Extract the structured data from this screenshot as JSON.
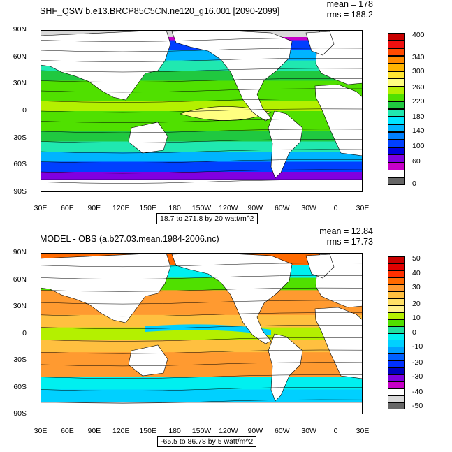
{
  "panels": [
    {
      "title": "SHF_QSW b.e13.BRCP85C5CN.ne120_g16.001 [2090-2099]",
      "mean": "mean = 178",
      "rms": "rms = 188.2",
      "caption": "18.7 to 271.8 by 20 watt/m^2",
      "legend": {
        "labels": [
          "400",
          "340",
          "300",
          "260",
          "220",
          "180",
          "140",
          "100",
          "60",
          "0"
        ],
        "colors": [
          "#c80000",
          "#f01010",
          "#ff4a00",
          "#ff8a00",
          "#ffb400",
          "#ffe633",
          "#ffff80",
          "#b4f000",
          "#50e000",
          "#20c840",
          "#20e8b0",
          "#00e6ff",
          "#00b4ff",
          "#0080ff",
          "#0040ff",
          "#0000e0",
          "#8000e0",
          "#c800c8",
          "#ffffff",
          "#666666"
        ]
      },
      "map": {
        "type": "contour-map",
        "lat_ticks": [
          "90N",
          "60N",
          "30N",
          "0",
          "30S",
          "60S",
          "90S"
        ],
        "lon_ticks": [
          "30E",
          "60E",
          "90E",
          "120E",
          "150E",
          "180",
          "150W",
          "120W",
          "90W",
          "60W",
          "30W",
          "0",
          "30E"
        ],
        "rows": [
          {
            "lat": "75N",
            "band_color": "#c800c8"
          },
          {
            "lat": "65N",
            "band_color": "#0040ff"
          },
          {
            "lat": "55N",
            "band_color": "#00b4ff"
          },
          {
            "lat": "45N",
            "band_color": "#20e8b0"
          },
          {
            "lat": "35N",
            "band_color": "#20c840"
          },
          {
            "lat": "25N",
            "band_color": "#50e000"
          },
          {
            "lat": "15N",
            "band_color": "#50e000"
          },
          {
            "lat": "5N",
            "band_color": "#b4f000"
          },
          {
            "lat": "5S",
            "band_color": "#50e000"
          },
          {
            "lat": "15S",
            "band_color": "#50e000"
          },
          {
            "lat": "25S",
            "band_color": "#20c840"
          },
          {
            "lat": "35S",
            "band_color": "#20e8b0"
          },
          {
            "lat": "45S",
            "band_color": "#00b4ff"
          },
          {
            "lat": "55S",
            "band_color": "#0040ff"
          },
          {
            "lat": "65S",
            "band_color": "#8000e0"
          },
          {
            "lat": "75S",
            "band_color": "#c800c8"
          }
        ],
        "features": [
          {
            "name": "Arctic sea-ice region",
            "color": "#d9d9d9"
          },
          {
            "name": "Subtropical Pacific maximum",
            "color": "#ffff80"
          }
        ]
      }
    },
    {
      "title": "MODEL - OBS (a.b27.03.mean.1984-2006.nc)",
      "mean": "mean = 12.84",
      "rms": "rms = 17.73",
      "caption": "-65.5 to 86.78 by 5 watt/m^2",
      "legend": {
        "labels": [
          "50",
          "40",
          "30",
          "20",
          "10",
          "0",
          "-10",
          "-20",
          "-30",
          "-40",
          "-50"
        ],
        "colors": [
          "#c80000",
          "#e00000",
          "#ff3000",
          "#ff6a00",
          "#ff9a30",
          "#ffc040",
          "#ffe066",
          "#fff08a",
          "#b4f000",
          "#50e000",
          "#20e0a0",
          "#00f0f0",
          "#00d0ff",
          "#00a0ff",
          "#0060ff",
          "#0030ff",
          "#0000c0",
          "#8000e0",
          "#c800c8",
          "#ffffff",
          "#d9d9d9",
          "#666666"
        ]
      },
      "map": {
        "type": "contour-map",
        "lat_ticks": [
          "90N",
          "60N",
          "30N",
          "0",
          "30S",
          "60S",
          "90S"
        ],
        "lon_ticks": [
          "30E",
          "60E",
          "90E",
          "120E",
          "150E",
          "180",
          "150W",
          "120W",
          "90W",
          "60W",
          "30W",
          "0",
          "30E"
        ],
        "rows": [
          {
            "lat": "80N",
            "band_color": "#ff6a00"
          },
          {
            "lat": "70N",
            "band_color": "#00f0f0"
          },
          {
            "lat": "55N",
            "band_color": "#50e000"
          },
          {
            "lat": "40N",
            "band_color": "#ff9a30"
          },
          {
            "lat": "25N",
            "band_color": "#ff9a30"
          },
          {
            "lat": "10N",
            "band_color": "#ffc040"
          },
          {
            "lat": "0",
            "band_color": "#b4f000"
          },
          {
            "lat": "10S",
            "band_color": "#ffc040"
          },
          {
            "lat": "25S",
            "band_color": "#ff9a30"
          },
          {
            "lat": "40S",
            "band_color": "#ff9a30"
          },
          {
            "lat": "52S",
            "band_color": "#00f0f0"
          },
          {
            "lat": "62S",
            "band_color": "#00d0ff"
          },
          {
            "lat": "72S",
            "band_color": "#ff6a00"
          }
        ]
      }
    }
  ]
}
